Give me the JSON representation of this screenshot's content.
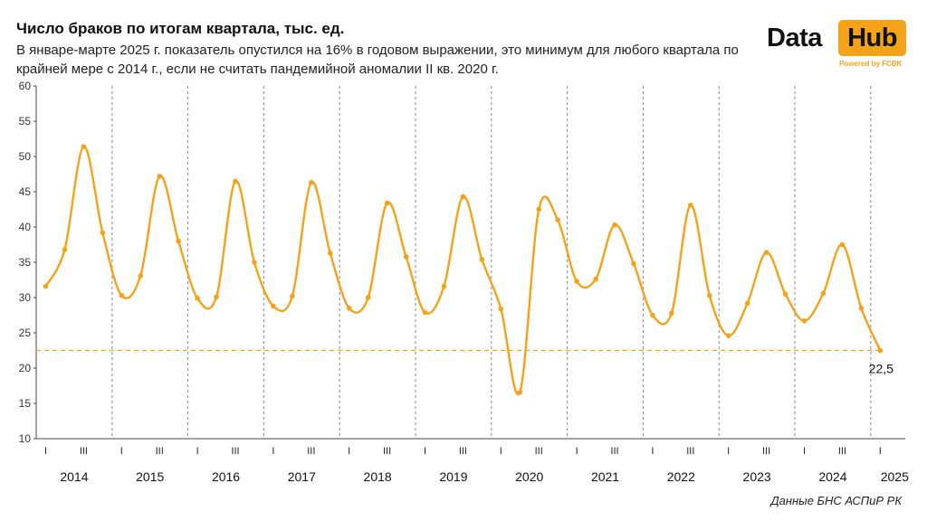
{
  "title": "Число браков по итогам квартала, тыс. ед.",
  "subtitle": "В январе-марте 2025 г. показатель опустился на 16% в годовом выражении, это минимум для любого квартала по  крайней мере с 2014 г., если не считать пандемийной аномалии II кв. 2020 г.",
  "logo": {
    "word1": "Data",
    "word2": "Hub",
    "tagline": "Powered by FCBK"
  },
  "source": "Данные БНС АСПиР РК",
  "colors": {
    "line": "#f5a21b",
    "grid_divider": "#888888",
    "axis": "#444444",
    "logo_bg": "#f5a21b"
  },
  "chart_data": {
    "type": "line",
    "title": "Число браков по итогам квартала, тыс. ед.",
    "ylabel": "",
    "xlabel": "",
    "ylim": [
      10,
      60
    ],
    "yticks": [
      10,
      15,
      20,
      25,
      30,
      35,
      40,
      45,
      50,
      55,
      60
    ],
    "years": [
      "2014",
      "2015",
      "2016",
      "2017",
      "2018",
      "2019",
      "2020",
      "2021",
      "2022",
      "2023",
      "2024",
      "2025"
    ],
    "quarter_tick_labels": [
      "I",
      "III"
    ],
    "series": [
      {
        "values": [
          31.6,
          36.8,
          51.4,
          39.2,
          30.3,
          33.1,
          47.2,
          38.0,
          29.9,
          30.1,
          46.5,
          35.0,
          28.8,
          30.2,
          46.3,
          36.3,
          28.5,
          30.0,
          43.4,
          35.8,
          27.9,
          31.6,
          44.3,
          35.4,
          28.4,
          16.6,
          42.5,
          41.0,
          32.3,
          32.6,
          40.3,
          34.8,
          27.5,
          27.8,
          43.1,
          30.3,
          24.6,
          29.2,
          36.4,
          30.5,
          26.7,
          30.6,
          37.5,
          28.5,
          22.5
        ]
      }
    ],
    "reference_line": {
      "value": 22.5,
      "style": "dashed"
    },
    "annotation": {
      "label": "22,5"
    },
    "grid": false,
    "year_dividers": "dashed vertical lines between years"
  }
}
